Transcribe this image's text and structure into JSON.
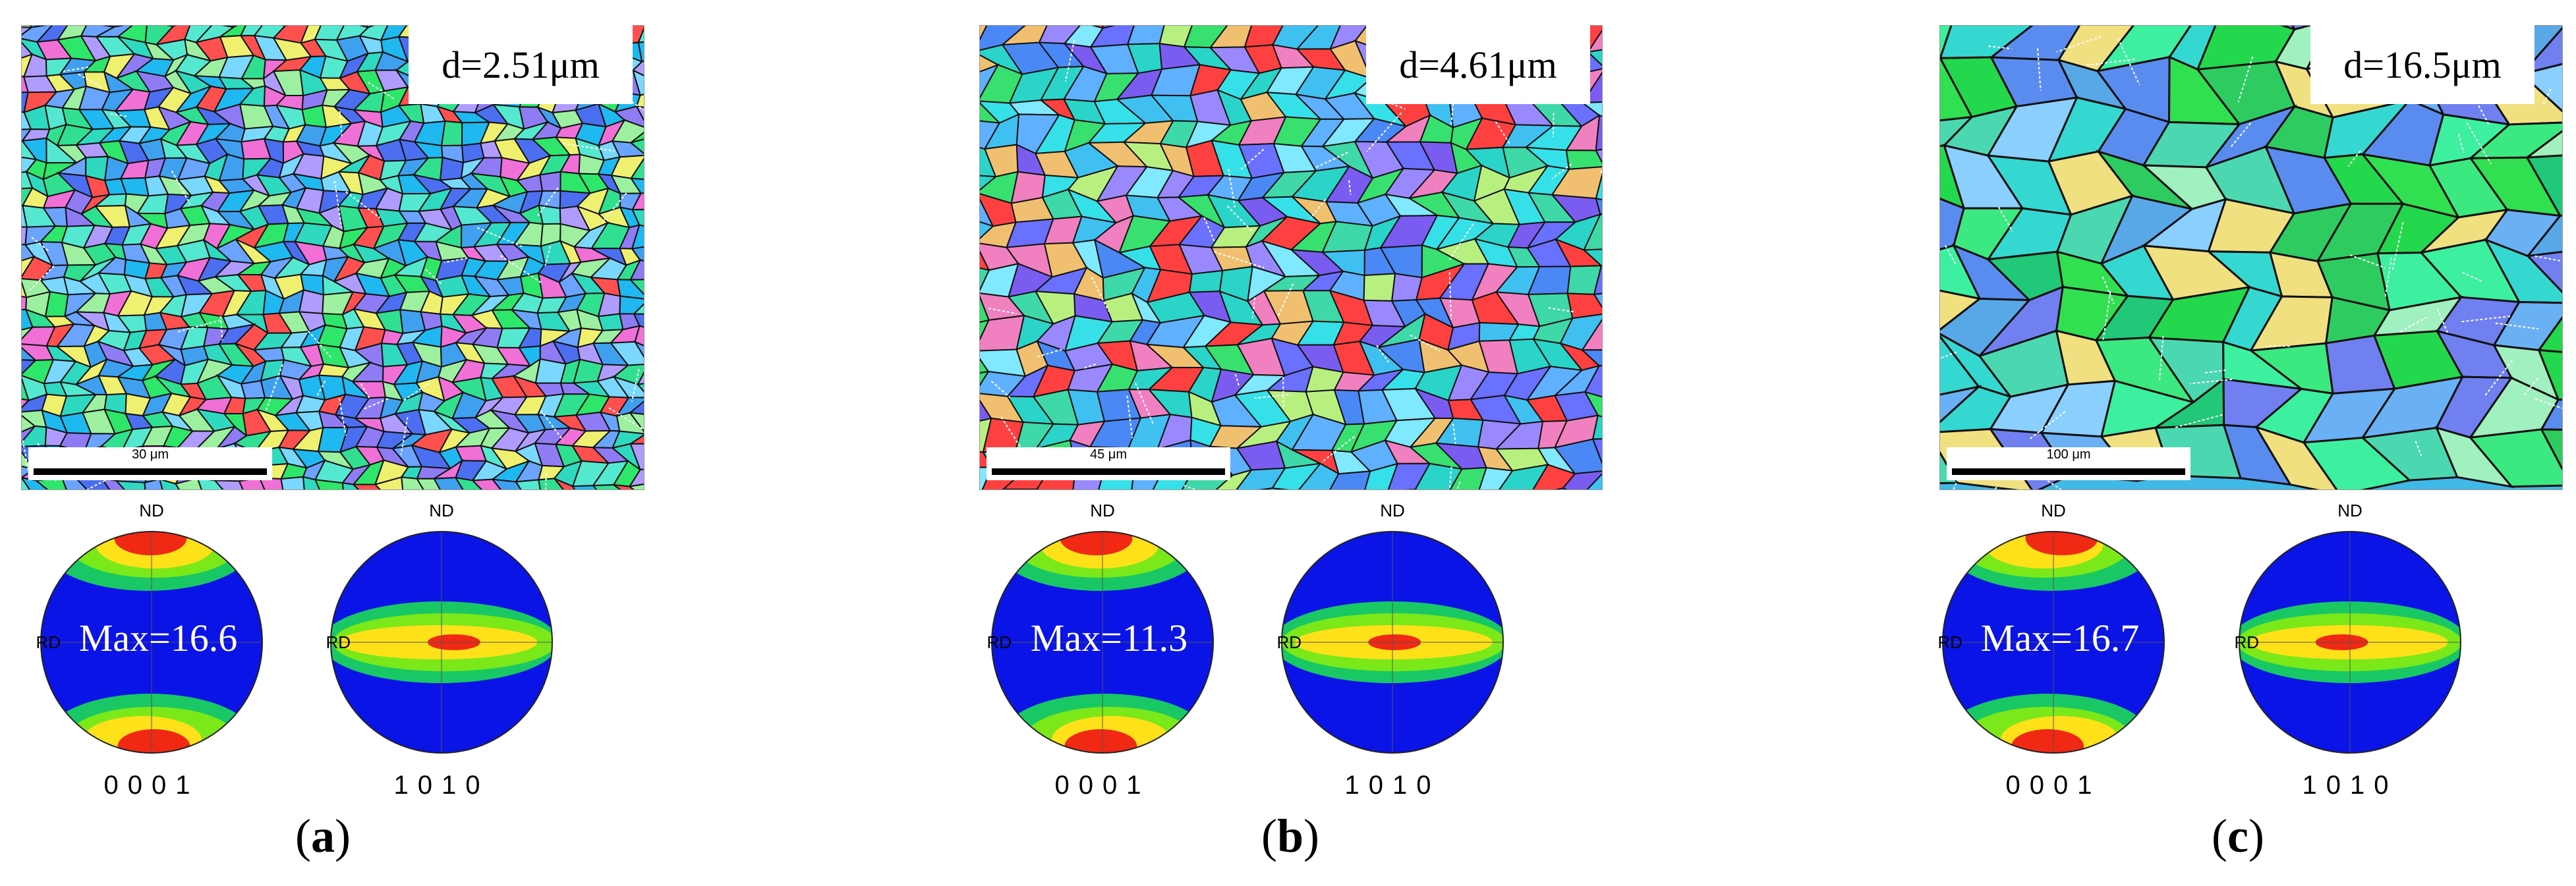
{
  "panels": [
    {
      "id": "a",
      "caption_open": "(",
      "caption_letter": "a",
      "caption_close": ")",
      "grain_size": "d=2.51μm",
      "scale_bar": "30 μm",
      "pole_figures": [
        {
          "nd": "ND",
          "rd": "RD",
          "max": "Max=16.6",
          "label": "0001"
        },
        {
          "nd": "ND",
          "rd": "RD",
          "max": "",
          "label": "1010"
        }
      ]
    },
    {
      "id": "b",
      "caption_open": "(",
      "caption_letter": "b",
      "caption_close": ")",
      "grain_size": "d=4.61μm",
      "scale_bar": "45 μm",
      "pole_figures": [
        {
          "nd": "ND",
          "rd": "RD",
          "max": "Max=11.3",
          "label": "0001"
        },
        {
          "nd": "ND",
          "rd": "RD",
          "max": "",
          "label": "1010"
        }
      ]
    },
    {
      "id": "c",
      "caption_open": "(",
      "caption_letter": "c",
      "caption_close": ")",
      "grain_size": "d=16.5μm",
      "scale_bar": "100 μm",
      "pole_figures": [
        {
          "nd": "ND",
          "rd": "RD",
          "max": "Max=16.7",
          "label": "0001"
        },
        {
          "nd": "ND",
          "rd": "RD",
          "max": "",
          "label": "1010"
        }
      ]
    }
  ],
  "colors": {
    "pole_background": "#0a14e6",
    "contour_low": "#19c864",
    "contour_mid": "#7be81a",
    "contour_high": "#ffe11a",
    "contour_peak": "#f02814"
  }
}
